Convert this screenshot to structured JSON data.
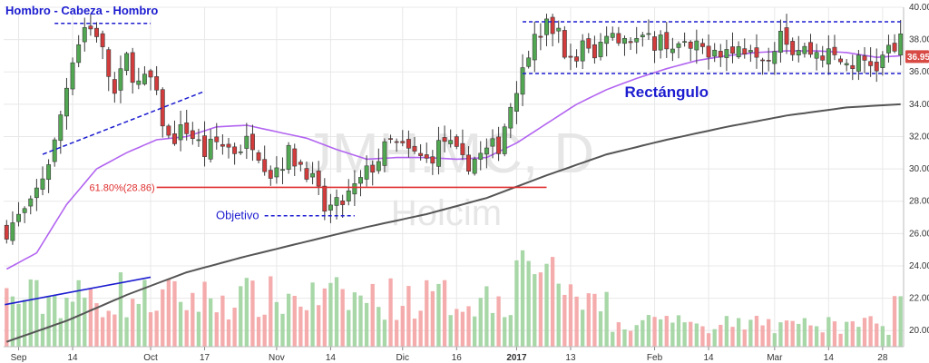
{
  "chart_data": {
    "type": "candlestick",
    "ylim": [
      19,
      40
    ],
    "y_ticks": [
      20,
      22,
      24,
      26,
      28,
      30,
      32,
      34,
      36,
      38,
      40
    ],
    "y_tick_labels": [
      "20.00",
      "22.00",
      "24.00",
      "26.00",
      "28.00",
      "30.00",
      "32.00",
      "34.00",
      "36.00",
      "38.00",
      "40.00"
    ],
    "x_tick_labels": [
      {
        "label": "Sep",
        "bar": 2
      },
      {
        "label": "14",
        "bar": 11
      },
      {
        "label": "Oct",
        "bar": 24
      },
      {
        "label": "17",
        "bar": 33
      },
      {
        "label": "Nov",
        "bar": 45
      },
      {
        "label": "14",
        "bar": 54
      },
      {
        "label": "Dic",
        "bar": 66
      },
      {
        "label": "16",
        "bar": 75
      },
      {
        "label": "2017",
        "bar": 85
      },
      {
        "label": "13",
        "bar": 94
      },
      {
        "label": "Feb",
        "bar": 108
      },
      {
        "label": "14",
        "bar": 117
      },
      {
        "label": "Mar",
        "bar": 128
      },
      {
        "label": "14",
        "bar": 137
      },
      {
        "label": "28",
        "bar": 146
      }
    ],
    "bar_count": 150,
    "price_anchors": [
      [
        0,
        26.3
      ],
      [
        4,
        27.6
      ],
      [
        8,
        31.5
      ],
      [
        11,
        37.0
      ],
      [
        13,
        38.8
      ],
      [
        15,
        38.5
      ],
      [
        18,
        34.5
      ],
      [
        20,
        36.8
      ],
      [
        22,
        35.2
      ],
      [
        24,
        35.5
      ],
      [
        27,
        31.8
      ],
      [
        30,
        32.5
      ],
      [
        33,
        31.0
      ],
      [
        35,
        31.6
      ],
      [
        38,
        31.2
      ],
      [
        41,
        31.8
      ],
      [
        44,
        29.8
      ],
      [
        47,
        30.9
      ],
      [
        50,
        30.0
      ],
      [
        53,
        27.5
      ],
      [
        55,
        27.6
      ],
      [
        58,
        28.7
      ],
      [
        61,
        30.2
      ],
      [
        64,
        31.6
      ],
      [
        67,
        31.0
      ],
      [
        70,
        30.5
      ],
      [
        73,
        31.8
      ],
      [
        76,
        30.3
      ],
      [
        79,
        30.8
      ],
      [
        82,
        31.5
      ],
      [
        84,
        34.0
      ],
      [
        86,
        36.5
      ],
      [
        88,
        38.0
      ],
      [
        90,
        38.8
      ],
      [
        92,
        38.5
      ],
      [
        94,
        36.5
      ],
      [
        96,
        37.6
      ],
      [
        98,
        36.8
      ],
      [
        100,
        38.7
      ],
      [
        103,
        38.2
      ],
      [
        106,
        37.8
      ],
      [
        109,
        38.0
      ],
      [
        112,
        37.5
      ],
      [
        115,
        37.3
      ],
      [
        118,
        37.6
      ],
      [
        121,
        37.2
      ],
      [
        124,
        37.8
      ],
      [
        127,
        37.0
      ],
      [
        129,
        38.8
      ],
      [
        131,
        37.5
      ],
      [
        134,
        37.3
      ],
      [
        137,
        37.0
      ],
      [
        140,
        36.5
      ],
      [
        143,
        36.6
      ],
      [
        145,
        36.4
      ],
      [
        147,
        37.3
      ],
      [
        149,
        37.8
      ]
    ],
    "ma_fast_anchors": [
      [
        0,
        23.8
      ],
      [
        5,
        24.8
      ],
      [
        10,
        27.8
      ],
      [
        15,
        30.0
      ],
      [
        20,
        31.0
      ],
      [
        25,
        31.8
      ],
      [
        30,
        32.0
      ],
      [
        35,
        32.6
      ],
      [
        40,
        32.7
      ],
      [
        45,
        32.3
      ],
      [
        50,
        31.9
      ],
      [
        55,
        31.2
      ],
      [
        60,
        30.6
      ],
      [
        65,
        30.7
      ],
      [
        70,
        30.7
      ],
      [
        75,
        30.6
      ],
      [
        80,
        30.7
      ],
      [
        85,
        31.6
      ],
      [
        90,
        32.8
      ],
      [
        95,
        34.0
      ],
      [
        100,
        34.9
      ],
      [
        105,
        35.6
      ],
      [
        110,
        36.2
      ],
      [
        115,
        36.7
      ],
      [
        120,
        37.0
      ],
      [
        125,
        37.2
      ],
      [
        130,
        37.3
      ],
      [
        135,
        37.3
      ],
      [
        140,
        37.2
      ],
      [
        145,
        36.9
      ],
      [
        149,
        37.0
      ]
    ],
    "ma_slow_anchors": [
      [
        0,
        19.3
      ],
      [
        10,
        20.6
      ],
      [
        20,
        22.2
      ],
      [
        30,
        23.6
      ],
      [
        40,
        24.6
      ],
      [
        50,
        25.5
      ],
      [
        60,
        26.4
      ],
      [
        70,
        27.2
      ],
      [
        80,
        28.2
      ],
      [
        90,
        29.6
      ],
      [
        100,
        30.9
      ],
      [
        110,
        31.8
      ],
      [
        120,
        32.6
      ],
      [
        130,
        33.3
      ],
      [
        140,
        33.8
      ],
      [
        149,
        34.0
      ]
    ],
    "last_price": "36.95",
    "annotations": {
      "head_shoulders": {
        "text": "Hombro - Cabeza - Hombro",
        "level": 39.0,
        "from_bar": 8,
        "to_bar": 24
      },
      "neckline": {
        "from": [
          6,
          30.9
        ],
        "to": [
          33,
          34.8
        ]
      },
      "rectangle": {
        "text": "Rectángulo",
        "top": 39.1,
        "bottom": 35.9,
        "from_bar": 86,
        "to_bar": 149
      },
      "fibonacci": {
        "text": "61.80%(28.86)",
        "level": 28.86,
        "from_bar": 25,
        "to_bar": 90
      },
      "target": {
        "text": "Objetivo",
        "level": 27.1,
        "from_bar": 43,
        "to_bar": 58
      },
      "volume_trend": {
        "from_bar": 0,
        "from_level": 21.6,
        "to_bar": 24,
        "to_level": 23.3
      }
    },
    "watermark": [
      "JMH.MC, D",
      "Holcim"
    ],
    "colors": {
      "up": "#52a852",
      "down": "#d23c3c",
      "vol_up": "#9ed39e",
      "vol_down": "#f4a3a3",
      "ma_fast": "#b264f0",
      "ma_slow": "#555555",
      "annotation": "#1c1cd0",
      "fibonacci": "#e03030",
      "grid": "#e8e8e8",
      "last_price_bg": "#d84a44"
    }
  }
}
